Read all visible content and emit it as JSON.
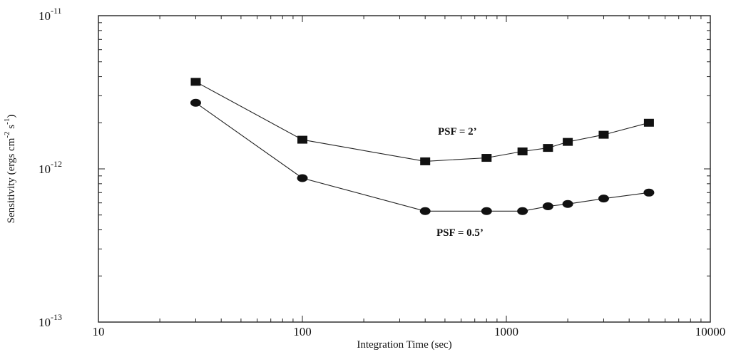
{
  "chart_data": {
    "type": "line",
    "title": "",
    "xlabel": "Integration Time (sec)",
    "ylabel": {
      "prefix": "Sensitivity (ergs cm",
      "exp1": "-2",
      "mid": " s",
      "exp2": "-1",
      "suffix": ")"
    },
    "xscale": "log",
    "yscale": "log",
    "xlim": [
      10,
      10000
    ],
    "ylim": [
      1e-13,
      1e-11
    ],
    "grid": false,
    "x_tick_labels": [
      "10",
      "100",
      "1000",
      "10000"
    ],
    "y_tick_labels": [
      {
        "base": "10",
        "exp": "-13"
      },
      {
        "base": "10",
        "exp": "-12"
      },
      {
        "base": "10",
        "exp": "-11"
      }
    ],
    "series": [
      {
        "marker": "square",
        "x": [
          30,
          100,
          400,
          800,
          1200,
          1600,
          2000,
          3000,
          5000
        ],
        "y": [
          3.7e-12,
          1.55e-12,
          1.12e-12,
          1.18e-12,
          1.3e-12,
          1.37e-12,
          1.5e-12,
          1.67e-12,
          2e-12
        ]
      },
      {
        "marker": "circle",
        "x": [
          30,
          100,
          400,
          800,
          1200,
          1600,
          2000,
          3000,
          5000
        ],
        "y": [
          2.7e-12,
          8.7e-13,
          5.3e-13,
          5.3e-13,
          5.3e-13,
          5.7e-13,
          5.9e-13,
          6.4e-13,
          7e-13
        ]
      }
    ],
    "annotations": [
      "PSF = 2’",
      "PSF = 0.5’"
    ]
  }
}
